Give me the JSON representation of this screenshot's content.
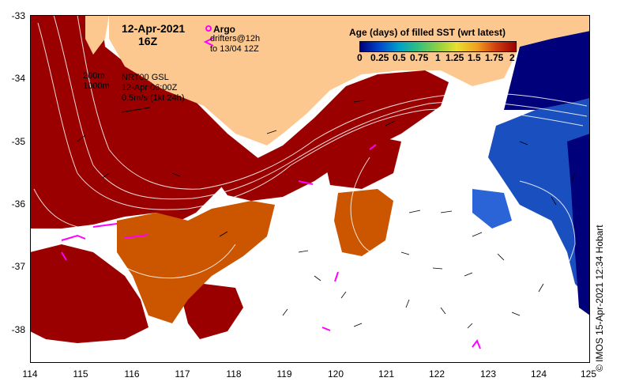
{
  "header": {
    "date": "12-Apr-2021",
    "time": "16Z"
  },
  "legend": {
    "argo_label": "Argo",
    "drifters_label": "drifters@12h",
    "drifters_range": "to 13/04 12Z",
    "argo_color": "#ff00ff",
    "drifter_color": "#ff00ff"
  },
  "contours": {
    "depth_200": "200m",
    "depth_1000": "1000m"
  },
  "current_info": {
    "source": "NRT00 GSL",
    "datetime": "12-Apr 06:00Z",
    "scale": "0.5m/s (1kt 24h)"
  },
  "colorbar": {
    "title": "Age (days) of filled SST (wrt latest)",
    "ticks": [
      "0",
      "0.25",
      "0.5",
      "0.75",
      "1",
      "1.25",
      "1.5",
      "1.75",
      "2"
    ]
  },
  "axes": {
    "y_ticks": [
      "-33",
      "-34",
      "-35",
      "-36",
      "-37",
      "-38"
    ],
    "x_ticks": [
      "114",
      "115",
      "116",
      "117",
      "118",
      "119",
      "120",
      "121",
      "122",
      "123",
      "124",
      "125"
    ]
  },
  "credit": "© IMOS 15-Apr-2021 12:34 Hobart",
  "colors": {
    "land": "#fdc890",
    "age_old": "#9b0000",
    "age_mid": "#cc5500",
    "age_new": "#0033aa",
    "age_newest": "#00007a"
  }
}
